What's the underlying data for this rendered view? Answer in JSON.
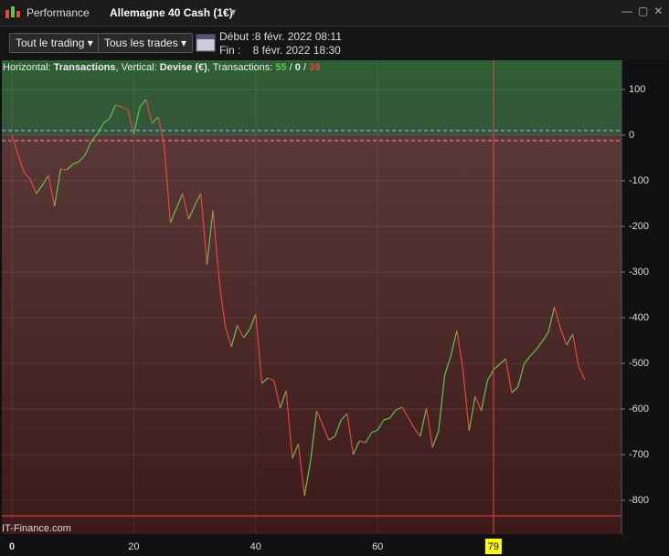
{
  "window": {
    "tab": "Performance",
    "instrument": "Allemagne 40 Cash (1€)"
  },
  "toolbar": {
    "scope": "Tout le trading",
    "trades": "Tous les trades",
    "start": "Début :8 févr. 2022 08:11",
    "end": "Fin :    8 févr. 2022 18:30"
  },
  "info": {
    "h_label": "Horizontal: ",
    "h_value": "Transactions",
    "v_label": ", Vertical: ",
    "v_value": "Devise (€)",
    "t_label": ", Transactions: ",
    "wins": 55,
    "sep1": " / ",
    "even": 0,
    "sep2": " / ",
    "losses": 39
  },
  "watermark": "IT-Finance.com",
  "chart_data": {
    "type": "line",
    "x": [
      0,
      1,
      2,
      3,
      4,
      5,
      6,
      7,
      8,
      9,
      10,
      11,
      12,
      13,
      14,
      15,
      16,
      17,
      18,
      19,
      20,
      21,
      22,
      23,
      24,
      25,
      26,
      27,
      28,
      29,
      30,
      31,
      32,
      33,
      34,
      35,
      36,
      37,
      38,
      39,
      40,
      41,
      42,
      43,
      44,
      45,
      46,
      47,
      48,
      49,
      50,
      51,
      52,
      53,
      54,
      55,
      56,
      57,
      58,
      59,
      60,
      61,
      62,
      63,
      64,
      65,
      66,
      67,
      68,
      69,
      70,
      71,
      72,
      73,
      74,
      75,
      76,
      77,
      78,
      79,
      80,
      81,
      82,
      83,
      84,
      85,
      86,
      87,
      88,
      89,
      90,
      91,
      92,
      93,
      94
    ],
    "series": [
      {
        "up_color": "#5cc84a",
        "down_color": "#e8463c",
        "values": [
          0,
          -42,
          -82,
          -96,
          -128,
          -110,
          -88,
          -156,
          -74,
          -76,
          -64,
          -58,
          -44,
          -14,
          2,
          26,
          36,
          66,
          62,
          56,
          2,
          62,
          78,
          26,
          40,
          -24,
          -192,
          -160,
          -128,
          -184,
          -154,
          -128,
          -284,
          -164,
          -318,
          -418,
          -464,
          -416,
          -444,
          -426,
          -392,
          -544,
          -532,
          -538,
          -598,
          -560,
          -708,
          -676,
          -790,
          -714,
          -604,
          -636,
          -668,
          -660,
          -624,
          -610,
          -700,
          -670,
          -674,
          -652,
          -646,
          -624,
          -620,
          -602,
          -596,
          -618,
          -642,
          -660,
          -598,
          -684,
          -648,
          -526,
          -484,
          -428,
          -514,
          -648,
          -572,
          -604,
          -538,
          -514,
          -502,
          -490,
          -564,
          -552,
          -502,
          -484,
          -470,
          -452,
          -432,
          -376,
          -424,
          -460,
          -436,
          -508,
          -536
        ]
      }
    ],
    "xlim": [
      -1.65,
      100
    ],
    "ylim": [
      -874,
      164
    ],
    "xticks": [
      0,
      20,
      40,
      60
    ],
    "yticks": [
      100,
      0,
      -100,
      -200,
      -300,
      -400,
      -500,
      -600,
      -700,
      -800
    ],
    "cursor": 79,
    "grid": true
  }
}
